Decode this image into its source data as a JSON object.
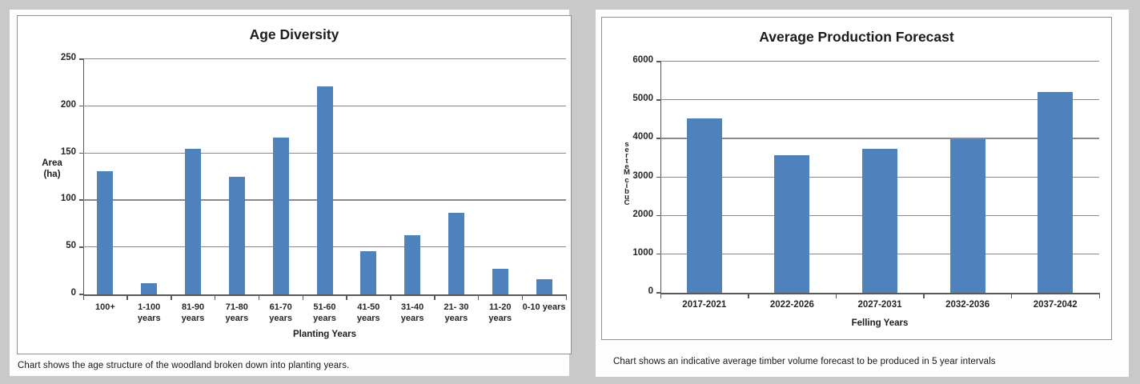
{
  "colors": {
    "background": "#c9c9c9",
    "panel": "#ffffff",
    "bar": "#4f81bd",
    "grid": "#8a8a8a",
    "axis": "#595959",
    "box_border": "#8f8f8f",
    "title_text": "#1c1c1c",
    "tick_text": "#262626",
    "caption_text": "#151515"
  },
  "chart_data": [
    {
      "type": "bar",
      "title": "Age Diversity",
      "categories": [
        "100+",
        "1-100 years",
        "81-90 years",
        "71-80 years",
        "61-70 years",
        "51-60 years",
        "41-50 years",
        "31-40 years",
        "21- 30 years",
        "11-20 years",
        "0-10 years"
      ],
      "category_lines": [
        [
          "100+"
        ],
        [
          "1-100",
          "years"
        ],
        [
          "81-90",
          "years"
        ],
        [
          "71-80",
          "years"
        ],
        [
          "61-70",
          "years"
        ],
        [
          "51-60",
          "years"
        ],
        [
          "41-50",
          "years"
        ],
        [
          "31-40",
          "years"
        ],
        [
          "21- 30",
          "years"
        ],
        [
          "11-20",
          "years"
        ],
        [
          "0-10 years"
        ]
      ],
      "values": [
        131,
        12,
        155,
        125,
        167,
        221,
        46,
        63,
        87,
        27,
        16
      ],
      "xlabel": "Planting Years",
      "ylabel": "Area (ha)",
      "ylabel_lines": [
        "Area",
        "(ha)"
      ],
      "ylim": [
        0,
        250
      ],
      "ytick_step": 50,
      "yticks": [
        0,
        50,
        100,
        150,
        200,
        250
      ],
      "grid": true,
      "legend": "none",
      "caption": "Chart shows the age structure of the woodland broken down into planting years."
    },
    {
      "type": "bar",
      "title": "Average Production Forecast",
      "categories": [
        "2017-2021",
        "2022-2026",
        "2027-2031",
        "2032-2036",
        "2037-2042"
      ],
      "values": [
        4530,
        3570,
        3740,
        3980,
        5220
      ],
      "xlabel": "Felling Years",
      "ylabel": "Cubic Metres",
      "ylabel_vertical_stacked": true,
      "ylim": [
        0,
        6000
      ],
      "ytick_step": 1000,
      "yticks": [
        0,
        1000,
        2000,
        3000,
        4000,
        5000,
        6000
      ],
      "grid": true,
      "legend": "none",
      "caption": "Chart shows an indicative average timber volume forecast to be produced in 5 year intervals"
    }
  ]
}
